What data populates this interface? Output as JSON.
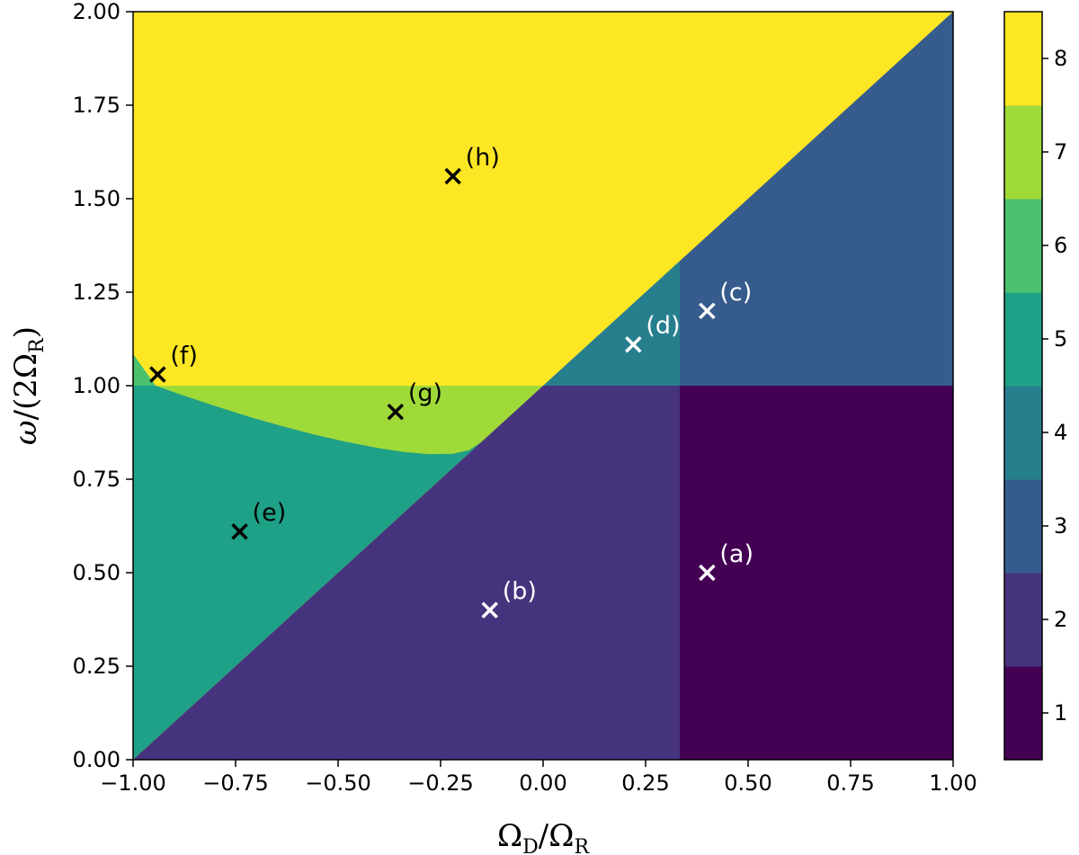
{
  "chart_data": {
    "type": "heatmap",
    "title": "",
    "xlabel": "Ω_D/Ω_R",
    "ylabel": "ω/(2Ω_R)",
    "xlim": [
      -1.0,
      1.0
    ],
    "ylim": [
      0.0,
      2.0
    ],
    "xticks": [
      "−1.00",
      "−0.75",
      "−0.50",
      "−0.25",
      "0.00",
      "0.25",
      "0.50",
      "0.75",
      "1.00"
    ],
    "xtick_values": [
      -1.0,
      -0.75,
      -0.5,
      -0.25,
      0.0,
      0.25,
      0.5,
      0.75,
      1.0
    ],
    "yticks": [
      "0.00",
      "0.25",
      "0.50",
      "0.75",
      "1.00",
      "1.25",
      "1.50",
      "1.75",
      "2.00"
    ],
    "ytick_values": [
      0.0,
      0.25,
      0.5,
      0.75,
      1.0,
      1.25,
      1.5,
      1.75,
      2.0
    ],
    "colorbar": {
      "levels": [
        1,
        2,
        3,
        4,
        5,
        6,
        7,
        8
      ],
      "labels": [
        "1",
        "2",
        "3",
        "4",
        "5",
        "6",
        "7",
        "8"
      ],
      "colors": [
        "#440154",
        "#46337e",
        "#365c8d",
        "#277f8e",
        "#1fa187",
        "#4ac16d",
        "#a0da39",
        "#fde725"
      ]
    },
    "regions": [
      {
        "value": 1,
        "description_polygon": [
          [
            0.3333,
            0.0
          ],
          [
            1.0,
            0.0
          ],
          [
            1.0,
            1.0
          ],
          [
            0.3333,
            1.0
          ]
        ]
      },
      {
        "value": 2,
        "description_polygon": [
          [
            -1.0,
            0.0
          ],
          [
            0.3333,
            0.0
          ],
          [
            0.3333,
            1.0
          ],
          [
            0.0,
            1.0
          ]
        ]
      },
      {
        "value": 3,
        "description_polygon": [
          [
            0.3333,
            1.0
          ],
          [
            1.0,
            1.0
          ],
          [
            1.0,
            2.0
          ],
          [
            0.3333,
            1.3333
          ]
        ]
      },
      {
        "value": 4,
        "description_polygon": [
          [
            0.0,
            1.0
          ],
          [
            0.3333,
            1.0
          ],
          [
            0.3333,
            1.3333
          ]
        ]
      },
      {
        "value": 5,
        "boundary": "below ω/(2Ω_R)=1 and curve, above diagonal"
      },
      {
        "value": 6,
        "boundary": "small wedge near Ω_D/Ω_R=-1, above 1.0"
      },
      {
        "value": 7,
        "boundary": "below 1.0, above curve"
      },
      {
        "value": 8,
        "boundary": "above line and curve"
      }
    ],
    "points": [
      {
        "label": "(a)",
        "x": 0.4,
        "y": 0.5,
        "color": "#ffffff"
      },
      {
        "label": "(b)",
        "x": -0.13,
        "y": 0.4,
        "color": "#ffffff"
      },
      {
        "label": "(c)",
        "x": 0.4,
        "y": 1.2,
        "color": "#ffffff"
      },
      {
        "label": "(d)",
        "x": 0.22,
        "y": 1.11,
        "color": "#ffffff"
      },
      {
        "label": "(e)",
        "x": -0.74,
        "y": 0.61,
        "color": "#000000"
      },
      {
        "label": "(f)",
        "x": -0.94,
        "y": 1.03,
        "color": "#000000"
      },
      {
        "label": "(g)",
        "x": -0.36,
        "y": 0.93,
        "color": "#000000"
      },
      {
        "label": "(h)",
        "x": -0.22,
        "y": 1.56,
        "color": "#000000"
      }
    ],
    "grid": false,
    "legend": "colorbar-right"
  }
}
